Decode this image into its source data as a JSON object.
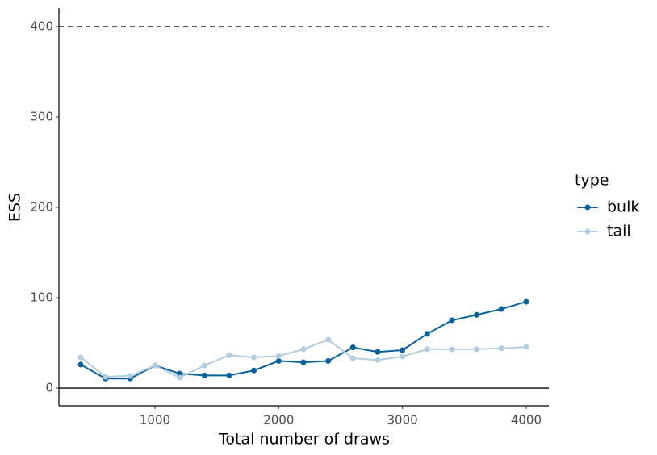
{
  "chart_data": {
    "type": "line",
    "x_label": "Total number of draws",
    "y_label": "ESS",
    "x": [
      400,
      600,
      800,
      1000,
      1200,
      1400,
      1600,
      1800,
      2000,
      2200,
      2400,
      2600,
      2800,
      3000,
      3200,
      3400,
      3600,
      3800,
      4000
    ],
    "series": [
      {
        "name": "bulk",
        "color": "#08619a",
        "values": [
          26,
          10.5,
          10.5,
          25,
          16,
          14,
          14,
          19.5,
          30,
          28.5,
          30,
          45,
          40,
          42,
          60,
          75,
          81,
          87.5,
          95.5
        ]
      },
      {
        "name": "tail",
        "color": "#b3cde0",
        "values": [
          34,
          12.5,
          13.5,
          25,
          11.5,
          25,
          36.5,
          34,
          35.5,
          43,
          53.5,
          33,
          31,
          35,
          43,
          43,
          43,
          44,
          45.5
        ]
      }
    ],
    "xlim": [
      224,
      4183
    ],
    "xticks": [
      1000,
      2000,
      3000,
      4000
    ],
    "ylim": [
      -19.6,
      420.5
    ],
    "yticks": [
      0,
      100,
      200,
      300,
      400
    ],
    "reference_lines": [
      {
        "value": 400,
        "style": "dashed"
      },
      {
        "value": 0,
        "style": "solid"
      }
    ],
    "legend_title": "type",
    "legend_position": "right",
    "grid": false
  }
}
